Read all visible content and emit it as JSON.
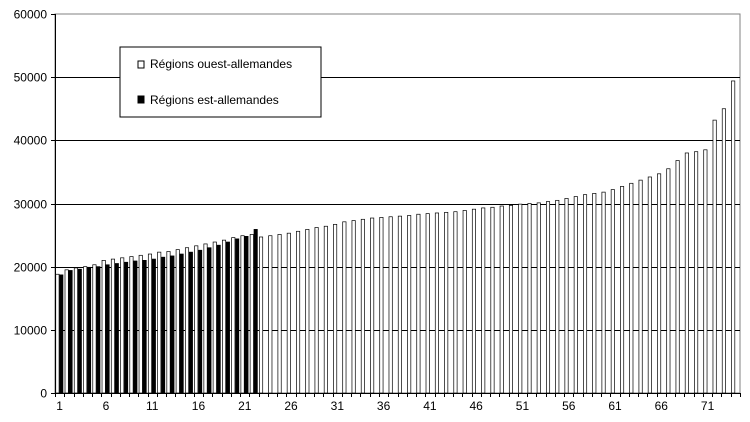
{
  "chart_data": {
    "type": "bar",
    "title": "",
    "xlabel": "",
    "ylabel": "",
    "ylim": [
      0,
      60000
    ],
    "yticks": [
      0,
      10000,
      20000,
      30000,
      40000,
      50000,
      60000
    ],
    "x_tick_labels": [
      "1",
      "6",
      "11",
      "16",
      "21",
      "26",
      "31",
      "36",
      "41",
      "46",
      "51",
      "56",
      "61",
      "66",
      "71"
    ],
    "x_tick_positions": [
      1,
      6,
      11,
      16,
      21,
      26,
      31,
      36,
      41,
      46,
      51,
      56,
      61,
      66,
      71
    ],
    "grid": "horizontal",
    "legend_position": "top-left",
    "categories": [
      "1",
      "2",
      "3",
      "4",
      "5",
      "6",
      "7",
      "8",
      "9",
      "10",
      "11",
      "12",
      "13",
      "14",
      "15",
      "16",
      "17",
      "18",
      "19",
      "20",
      "21",
      "22",
      "23",
      "24",
      "25",
      "26",
      "27",
      "28",
      "29",
      "30",
      "31",
      "32",
      "33",
      "34",
      "35",
      "36",
      "37",
      "38",
      "39",
      "40",
      "41",
      "42",
      "43",
      "44",
      "45",
      "46",
      "47",
      "48",
      "49",
      "50",
      "51",
      "52",
      "53",
      "54",
      "55",
      "56",
      "57",
      "58",
      "59",
      "60",
      "61",
      "62",
      "63",
      "64",
      "65",
      "66",
      "67",
      "68",
      "69",
      "70",
      "71",
      "72",
      "73",
      "74"
    ],
    "series": [
      {
        "name": "Régions ouest-allemandes",
        "color": "#ffffff",
        "stroke": "#000000",
        "values": [
          18800,
          19500,
          19800,
          20000,
          20300,
          21000,
          21200,
          21400,
          21600,
          21800,
          22000,
          22300,
          22400,
          22700,
          23000,
          23300,
          23600,
          23900,
          24200,
          24600,
          24900,
          25100,
          24700,
          24900,
          25100,
          25300,
          25600,
          25900,
          26200,
          26400,
          26700,
          27100,
          27300,
          27500,
          27700,
          27800,
          27900,
          28000,
          28100,
          28300,
          28400,
          28500,
          28600,
          28700,
          28900,
          29100,
          29300,
          29400,
          29600,
          29700,
          29900,
          30000,
          30100,
          30300,
          30500,
          30800,
          31100,
          31400,
          31600,
          31800,
          32200,
          32700,
          33200,
          33700,
          34200,
          34700,
          35500,
          36800,
          38000,
          38200,
          38500,
          43200,
          45000,
          49400
        ]
      },
      {
        "name": "Régions est-allemandes",
        "color": "#000000",
        "stroke": "#000000",
        "values": [
          18700,
          19400,
          19600,
          19900,
          20000,
          20300,
          20500,
          20700,
          20900,
          21000,
          21200,
          21500,
          21700,
          22000,
          22300,
          22600,
          23000,
          23400,
          23900,
          24400,
          24800,
          25900,
          null,
          null,
          null,
          null,
          null,
          null,
          null,
          null,
          null,
          null,
          null,
          null,
          null,
          null,
          null,
          null,
          null,
          null,
          null,
          null,
          null,
          null,
          null,
          null,
          null,
          null,
          null,
          null,
          null,
          null,
          null,
          null,
          null,
          null,
          null,
          null,
          null,
          null,
          null,
          null,
          null,
          null,
          null,
          null,
          null,
          null,
          null,
          null,
          null,
          null,
          null,
          null
        ]
      }
    ]
  }
}
